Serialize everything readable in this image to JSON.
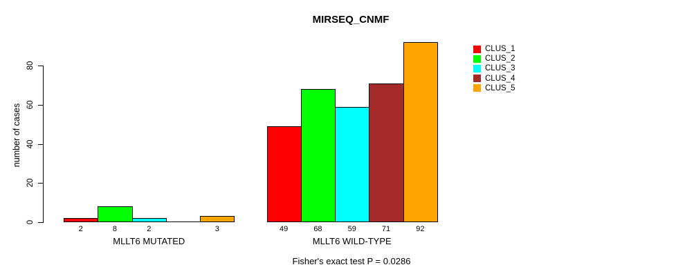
{
  "chart_data": {
    "type": "bar",
    "title": "MIRSEQ_CNMF",
    "ylabel": "number of cases",
    "xlabel": "",
    "categories": [
      "MLLT6 MUTATED",
      "MLLT6 WILD-TYPE"
    ],
    "series": [
      {
        "name": "CLUS_1",
        "color": "#ff0000",
        "values": [
          2,
          49
        ]
      },
      {
        "name": "CLUS_2",
        "color": "#00ff00",
        "values": [
          8,
          68
        ]
      },
      {
        "name": "CLUS_3",
        "color": "#00ffff",
        "values": [
          2,
          59
        ]
      },
      {
        "name": "CLUS_4",
        "color": "#a52a2a",
        "values": [
          0,
          71
        ]
      },
      {
        "name": "CLUS_5",
        "color": "#ffa500",
        "values": [
          3,
          92
        ]
      }
    ],
    "bar_value_labels": [
      [
        "2",
        "8",
        "2",
        "",
        "3"
      ],
      [
        "49",
        "68",
        "59",
        "71",
        "92"
      ]
    ],
    "yticks": [
      0,
      20,
      40,
      60,
      80
    ],
    "ylim": [
      0,
      92
    ],
    "grid": false,
    "legend_position": "right",
    "annotation": "Fisher's exact test P = 0.0286"
  }
}
